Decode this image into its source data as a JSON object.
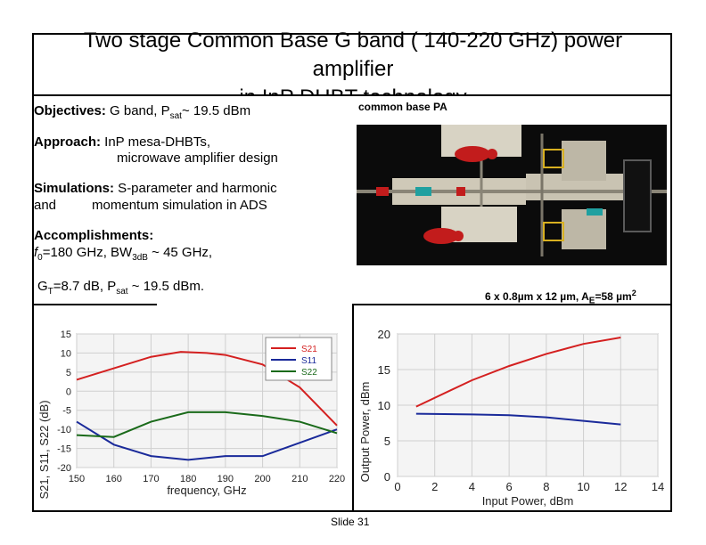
{
  "title": {
    "line1": "Two stage Common Base G band ( 140-220 GHz) power",
    "line2": "amplifier",
    "line3": "in InP DHBT technology"
  },
  "objectives": {
    "label": "Objectives:",
    "text_a": " G band, P",
    "sub": "sat",
    "text_b": "~ 19.5 dBm"
  },
  "chip_label": "common base PA",
  "approach": {
    "label": "Approach:",
    "line1": " InP mesa-DHBTs,",
    "line2": "microwave amplifier design"
  },
  "simulations": {
    "label": "Simulations:",
    "line1": " S-parameter and harmonic",
    "line2a": "and",
    "line2b": "momentum simulation in ADS"
  },
  "accomplishments": {
    "label": "Accomplishments:",
    "f0": "f",
    "f0_sub": "0",
    "f0_rest": "=180 GHz, BW",
    "bw_sub": "3dB",
    "bw_rest": " ~ 45 GHz,",
    "gt": "G",
    "gt_sub": "T",
    "gt_rest": "=8.7 dB, P",
    "psat_sub": "sat",
    "psat_rest": " ~ 19.5 dBm."
  },
  "device_caption": {
    "a": "6 x 0.8µm x 12 µm, A",
    "sub": "E",
    "b": "=58 µm",
    "sup": "2"
  },
  "slide_number": "Slide 31",
  "colors": {
    "s21": "#d42020",
    "s11": "#1a2a9a",
    "s22": "#1a6a1a",
    "pout": "#d42020",
    "gain": "#1a2a9a"
  },
  "chart_data": [
    {
      "type": "line",
      "xlabel": "frequency, GHz",
      "ylabel": "S21, S11, S22 (dB)",
      "xlim": [
        150,
        220
      ],
      "ylim": [
        -20,
        15
      ],
      "xticks": [
        "150",
        "160",
        "170",
        "180",
        "190",
        "200",
        "210",
        "220"
      ],
      "yticks": [
        "15",
        "10",
        "5",
        "0",
        "-5",
        "-10",
        "-15",
        "-20"
      ],
      "legend": "top-right",
      "series": [
        {
          "name": "S21",
          "x": [
            150,
            160,
            170,
            178,
            185,
            190,
            200,
            210,
            220
          ],
          "y": [
            3,
            6,
            9,
            10.3,
            10,
            9.5,
            7,
            1,
            -9
          ]
        },
        {
          "name": "S11",
          "x": [
            150,
            160,
            170,
            180,
            190,
            200,
            210,
            220
          ],
          "y": [
            -8,
            -14,
            -17,
            -18,
            -17,
            -17,
            -13.5,
            -10
          ]
        },
        {
          "name": "S22",
          "x": [
            150,
            160,
            170,
            180,
            190,
            200,
            210,
            220
          ],
          "y": [
            -11.5,
            -12,
            -8,
            -5.5,
            -5.5,
            -6.5,
            -8,
            -11
          ]
        }
      ]
    },
    {
      "type": "line",
      "xlabel": "Input Power, dBm",
      "ylabel": "Output Power, dBm",
      "xlim": [
        0,
        14
      ],
      "ylim": [
        0,
        20
      ],
      "xticks": [
        "0",
        "2",
        "4",
        "6",
        "8",
        "10",
        "12",
        "14"
      ],
      "yticks": [
        "20",
        "15",
        "10",
        "5",
        "0"
      ],
      "series": [
        {
          "x": [
            1,
            4,
            6,
            8,
            10,
            12
          ],
          "y": [
            9.8,
            13.5,
            15.5,
            17.2,
            18.6,
            19.5
          ]
        },
        {
          "x": [
            1,
            4,
            6,
            8,
            10,
            12
          ],
          "y": [
            8.8,
            8.7,
            8.6,
            8.3,
            7.8,
            7.3
          ]
        }
      ]
    }
  ]
}
